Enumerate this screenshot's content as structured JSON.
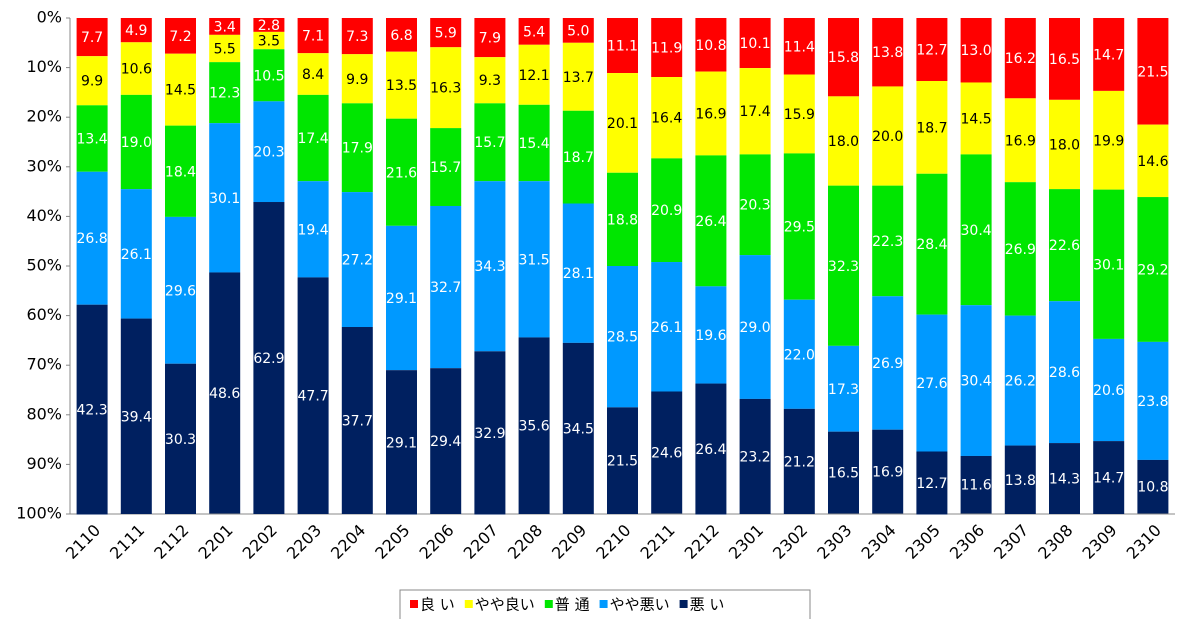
{
  "chart_data": {
    "type": "stacked_bar_100",
    "categories": [
      "2110",
      "2111",
      "2112",
      "2201",
      "2202",
      "2203",
      "2204",
      "2205",
      "2206",
      "2207",
      "2208",
      "2209",
      "2210",
      "2211",
      "2212",
      "2301",
      "2302",
      "2303",
      "2304",
      "2305",
      "2306",
      "2307",
      "2308",
      "2309",
      "2310"
    ],
    "series": [
      {
        "name": "良 い",
        "color": "#ff0000",
        "values": [
          7.7,
          4.9,
          7.2,
          3.4,
          2.8,
          7.1,
          7.3,
          6.8,
          5.9,
          7.9,
          5.4,
          5.0,
          11.1,
          11.9,
          10.8,
          10.1,
          11.4,
          15.8,
          13.8,
          12.7,
          13.0,
          16.2,
          16.5,
          14.7,
          21.5
        ],
        "value_labels": [
          "7.7",
          "4.9",
          "7.2",
          "3.4",
          "2.8",
          "7.1",
          "7.3",
          "6.8",
          "5.9",
          "7.9",
          "5.4",
          "5.0",
          "11.1",
          "11.9",
          "10.8",
          "10.1",
          "11.4",
          "15.8",
          "13.8",
          "12.7",
          "13.0",
          "16.2",
          "16.5",
          "14.7",
          "21.5"
        ]
      },
      {
        "name": "やや良い",
        "color": "#ffff00",
        "values": [
          9.9,
          10.6,
          14.5,
          5.5,
          3.5,
          8.4,
          9.9,
          13.5,
          16.3,
          9.3,
          12.1,
          13.7,
          20.1,
          16.4,
          16.9,
          17.4,
          15.9,
          18.0,
          20.0,
          18.7,
          14.5,
          16.9,
          18.0,
          19.9,
          14.6
        ],
        "value_labels": [
          "9.9",
          "10.6",
          "14.5",
          "5.5",
          "3.5",
          "8.4",
          "9.9",
          "13.5",
          "16.3",
          "9.3",
          "12.1",
          "13.7",
          "20.1",
          "16.4",
          "16.9",
          "17.4",
          "15.9",
          "18.0",
          "20.0",
          "18.7",
          "14.5",
          "16.9",
          "18.0",
          "19.9",
          "14.6"
        ]
      },
      {
        "name": "普 通",
        "color": "#00e600",
        "values": [
          13.4,
          19.0,
          18.4,
          12.3,
          10.5,
          17.4,
          17.9,
          21.6,
          15.7,
          15.7,
          15.4,
          18.7,
          18.8,
          20.9,
          26.4,
          20.3,
          29.5,
          32.3,
          22.3,
          28.4,
          30.4,
          26.9,
          22.6,
          30.1,
          29.2
        ],
        "value_labels": [
          "13.4",
          "19.0",
          "18.4",
          "12.3",
          "10.5",
          "17.4",
          "17.9",
          "21.6",
          "15.7",
          "15.7",
          "15.4",
          "18.7",
          "18.8",
          "20.9",
          "26.4",
          "20.3",
          "29.5",
          "32.3",
          "22.3",
          "28.4",
          "30.4",
          "26.9",
          "22.6",
          "30.1",
          "29.2"
        ]
      },
      {
        "name": "やや悪い",
        "color": "#0099ff",
        "values": [
          26.8,
          26.1,
          29.6,
          30.1,
          20.3,
          19.4,
          27.2,
          29.1,
          32.7,
          34.3,
          31.5,
          28.1,
          28.5,
          26.1,
          19.6,
          29.0,
          22.0,
          17.3,
          26.9,
          27.6,
          30.4,
          26.2,
          28.6,
          20.6,
          23.8
        ],
        "value_labels": [
          "26.8",
          "26.1",
          "29.6",
          "30.1",
          "20.3",
          "19.4",
          "27.2",
          "29.1",
          "32.7",
          "34.3",
          "31.5",
          "28.1",
          "28.5",
          "26.1",
          "19.6",
          "29.0",
          "22.0",
          "17.3",
          "26.9",
          "27.6",
          "30.4",
          "26.2",
          "28.6",
          "20.6",
          "23.8"
        ]
      },
      {
        "name": "悪 い",
        "color": "#002060",
        "values": [
          42.3,
          39.4,
          30.3,
          48.6,
          62.9,
          47.7,
          37.7,
          29.1,
          29.4,
          32.9,
          35.6,
          34.5,
          21.5,
          24.6,
          26.4,
          23.2,
          21.2,
          16.5,
          16.9,
          12.7,
          11.6,
          13.8,
          14.3,
          14.7,
          10.8
        ],
        "value_labels": [
          "42.3",
          "39.4",
          "30.3",
          "48.6",
          "62.9",
          "47.7",
          "37.7",
          "29.1",
          "29.4",
          "32.9",
          "35.6",
          "34.5",
          "21.5",
          "24.6",
          "26.4",
          "23.2",
          "21.2",
          "16.5",
          "16.9",
          "12.7",
          "11.6",
          "13.8",
          "14.3",
          "14.7",
          "10.8"
        ]
      }
    ],
    "ylim": [
      0,
      100
    ],
    "y_inverted": true,
    "yticks": [
      {
        "value": 0,
        "label": "0%"
      },
      {
        "value": 10,
        "label": "10%"
      },
      {
        "value": 20,
        "label": "20%"
      },
      {
        "value": 30,
        "label": "30%"
      },
      {
        "value": 40,
        "label": "40%"
      },
      {
        "value": 50,
        "label": "50%"
      },
      {
        "value": 60,
        "label": "60%"
      },
      {
        "value": 70,
        "label": "70%"
      },
      {
        "value": 80,
        "label": "80%"
      },
      {
        "value": 90,
        "label": "90%"
      },
      {
        "value": 100,
        "label": "100%"
      }
    ],
    "legend": "bottom"
  }
}
